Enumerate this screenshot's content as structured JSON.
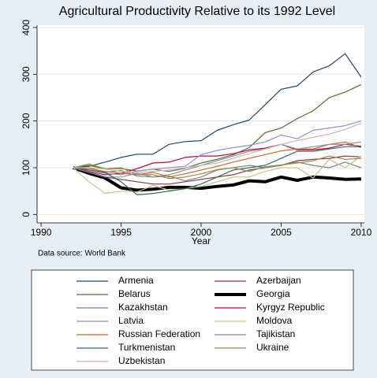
{
  "chart_data": {
    "type": "line",
    "title": "Agricultural Productivity Relative to its 1992 Level",
    "xlabel": "Year",
    "note": "Data source: World Bank",
    "x": [
      1992,
      1993,
      1994,
      1995,
      1996,
      1997,
      1998,
      1999,
      2000,
      2001,
      2002,
      2003,
      2004,
      2005,
      2006,
      2007,
      2008,
      2009,
      2010
    ],
    "xlim": [
      1989.75,
      2010.2
    ],
    "xticks": [
      1990,
      1995,
      2000,
      2005,
      2010
    ],
    "ylim": [
      -18,
      405
    ],
    "yticks": [
      0,
      100,
      200,
      300,
      400
    ],
    "grid": true,
    "series": [
      {
        "name": "Armenia",
        "color": "#1a476f",
        "values": [
          100,
          103,
          112,
          122,
          129,
          129,
          150,
          156,
          158,
          180,
          192,
          202,
          235,
          268,
          275,
          305,
          318,
          344,
          294
        ]
      },
      {
        "name": "Azerbaijan",
        "color": "#90353b",
        "values": [
          100,
          90,
          80,
          75,
          70,
          65,
          65,
          70,
          75,
          80,
          85,
          95,
          100,
          105,
          115,
          118,
          120,
          125,
          123
        ]
      },
      {
        "name": "Belarus",
        "color": "#55752f",
        "values": [
          100,
          105,
          98,
          98,
          93,
          97,
          92,
          99,
          110,
          118,
          128,
          143,
          175,
          185,
          205,
          222,
          250,
          262,
          278
        ]
      },
      {
        "name": "Georgia",
        "color": "#000000",
        "width": 4,
        "values": [
          100,
          88,
          78,
          57,
          52,
          54,
          58,
          58,
          56,
          60,
          63,
          72,
          70,
          80,
          73,
          80,
          78,
          75,
          76
        ]
      },
      {
        "name": "Kazakhstan",
        "color": "#6e8e84",
        "values": [
          100,
          100,
          90,
          94,
          82,
          80,
          82,
          72,
          80,
          95,
          100,
          105,
          100,
          105,
          112,
          105,
          100,
          112,
          100
        ]
      },
      {
        "name": "Kyrgyz Republic",
        "color": "#c10534",
        "values": [
          100,
          92,
          85,
          88,
          98,
          110,
          112,
          122,
          125,
          125,
          130,
          138,
          142,
          150,
          138,
          138,
          142,
          150,
          146
        ]
      },
      {
        "name": "Latvia",
        "color": "#938dd2",
        "values": [
          100,
          95,
          88,
          85,
          93,
          97,
          100,
          103,
          128,
          137,
          143,
          148,
          155,
          170,
          162,
          180,
          185,
          190,
          200
        ]
      },
      {
        "name": "Moldova",
        "color": "#cac27e",
        "values": [
          100,
          70,
          45,
          50,
          48,
          62,
          52,
          55,
          60,
          70,
          80,
          80,
          92,
          100,
          100,
          78,
          118,
          100,
          125
        ]
      },
      {
        "name": "Russian Federation",
        "color": "#d2691e",
        "values": [
          100,
          98,
          92,
          88,
          85,
          90,
          80,
          87,
          95,
          103,
          112,
          120,
          128,
          136,
          140,
          140,
          150,
          155,
          143
        ]
      },
      {
        "name": "Tajikistan",
        "color": "#7b92a8",
        "values": [
          100,
          90,
          80,
          80,
          88,
          80,
          85,
          95,
          105,
          115,
          125,
          135,
          140,
          150,
          140,
          145,
          150,
          150,
          155
        ]
      },
      {
        "name": "Turkmenistan",
        "color": "#2d6d66",
        "values": [
          100,
          95,
          90,
          70,
          42,
          45,
          50,
          55,
          65,
          80,
          95,
          100,
          105,
          120,
          135,
          135,
          140,
          145,
          145
        ]
      },
      {
        "name": "Ukraine",
        "color": "#9c8847",
        "values": [
          100,
          108,
          98,
          100,
          85,
          85,
          77,
          80,
          87,
          96,
          100,
          92,
          102,
          106,
          110,
          115,
          125,
          118,
          120
        ]
      },
      {
        "name": "Uzbekistan",
        "color": "#d8b0b0",
        "values": [
          100,
          100,
          97,
          92,
          90,
          92,
          95,
          100,
          105,
          110,
          120,
          130,
          140,
          150,
          158,
          165,
          172,
          182,
          195
        ]
      }
    ]
  }
}
